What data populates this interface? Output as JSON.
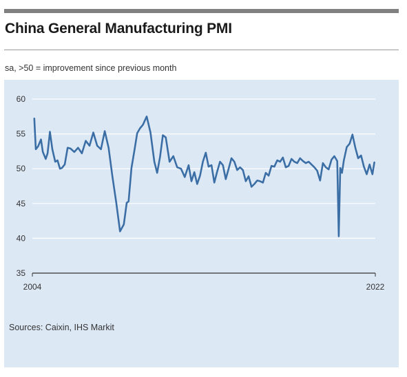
{
  "title": "China General Manufacturing PMI",
  "subtitle": "sa, >50 = improvement since previous month",
  "source": "Sources: Caixin, IHS Markit",
  "colors": {
    "line": "#3a6ea5",
    "panel": "#dde8f5",
    "grid": "#ffffff",
    "rule": "#808080"
  },
  "chart_data": {
    "type": "line",
    "title": "China General Manufacturing PMI",
    "ylim": [
      35,
      60
    ],
    "yticks": [
      "35",
      "40",
      "45",
      "50",
      "55",
      "60"
    ],
    "xlim": [
      2004.0,
      2022.0
    ],
    "xticks": [
      {
        "value": 2004.0,
        "label": "2004"
      },
      {
        "value": 2022.0,
        "label": "2022"
      }
    ],
    "grid": "horizontal",
    "series": [
      {
        "x": [
          2004.1,
          2004.18,
          2004.3,
          2004.45,
          2004.55,
          2004.7,
          2004.8,
          2004.92,
          2005.05,
          2005.2,
          2005.32,
          2005.45,
          2005.55,
          2005.7,
          2005.85,
          2006.0,
          2006.2,
          2006.4,
          2006.6,
          2006.8,
          2007.0,
          2007.2,
          2007.4,
          2007.6,
          2007.8,
          2008.0,
          2008.2,
          2008.4,
          2008.6,
          2008.8,
          2008.95,
          2009.05,
          2009.2,
          2009.35,
          2009.5,
          2009.65,
          2009.8,
          2010.0,
          2010.2,
          2010.4,
          2010.55,
          2010.7,
          2010.85,
          2011.0,
          2011.2,
          2011.4,
          2011.6,
          2011.8,
          2012.0,
          2012.2,
          2012.35,
          2012.5,
          2012.65,
          2012.8,
          2012.95,
          2013.1,
          2013.25,
          2013.4,
          2013.55,
          2013.7,
          2013.85,
          2014.0,
          2014.15,
          2014.3,
          2014.45,
          2014.6,
          2014.75,
          2014.9,
          2015.05,
          2015.2,
          2015.35,
          2015.5,
          2015.65,
          2015.8,
          2015.95,
          2016.1,
          2016.25,
          2016.4,
          2016.55,
          2016.7,
          2016.85,
          2017.0,
          2017.15,
          2017.3,
          2017.45,
          2017.6,
          2017.75,
          2017.9,
          2018.05,
          2018.2,
          2018.35,
          2018.5,
          2018.65,
          2018.8,
          2018.95,
          2019.1,
          2019.25,
          2019.4,
          2019.55,
          2019.7,
          2019.85,
          2020.0,
          2020.08,
          2020.16,
          2020.25,
          2020.35,
          2020.5,
          2020.65,
          2020.8,
          2020.95,
          2021.1,
          2021.25,
          2021.4,
          2021.55,
          2021.7,
          2021.85,
          2021.95
        ],
        "values": [
          57.2,
          52.8,
          53.2,
          54.2,
          52.4,
          51.4,
          52.2,
          55.3,
          52.8,
          51.0,
          51.2,
          50.0,
          50.1,
          50.6,
          53.0,
          52.9,
          52.4,
          53.0,
          52.2,
          54.0,
          53.3,
          55.2,
          53.3,
          52.8,
          55.4,
          53.0,
          48.9,
          45.2,
          41.0,
          42.0,
          45.1,
          45.3,
          50.1,
          52.5,
          55.1,
          55.8,
          56.3,
          57.5,
          55.2,
          51.0,
          49.4,
          51.7,
          54.8,
          54.5,
          51.0,
          51.8,
          50.2,
          50.0,
          48.8,
          50.5,
          48.2,
          49.5,
          47.8,
          49.0,
          51.0,
          52.3,
          50.3,
          50.5,
          48.0,
          49.6,
          51.0,
          50.5,
          48.5,
          50.0,
          51.5,
          51.0,
          49.8,
          50.2,
          49.8,
          48.2,
          48.9,
          47.4,
          47.8,
          48.3,
          48.2,
          48.0,
          49.4,
          49.0,
          50.4,
          50.3,
          51.2,
          51.0,
          51.6,
          50.2,
          50.4,
          51.4,
          51.0,
          50.8,
          51.5,
          51.1,
          50.8,
          51.0,
          50.6,
          50.2,
          49.7,
          48.3,
          50.8,
          50.2,
          49.9,
          51.3,
          51.8,
          51.1,
          40.3,
          50.1,
          49.4,
          51.2,
          53.1,
          53.6,
          54.9,
          53.0,
          51.5,
          51.9,
          50.3,
          49.2,
          50.6,
          49.2,
          50.9
        ]
      }
    ]
  }
}
